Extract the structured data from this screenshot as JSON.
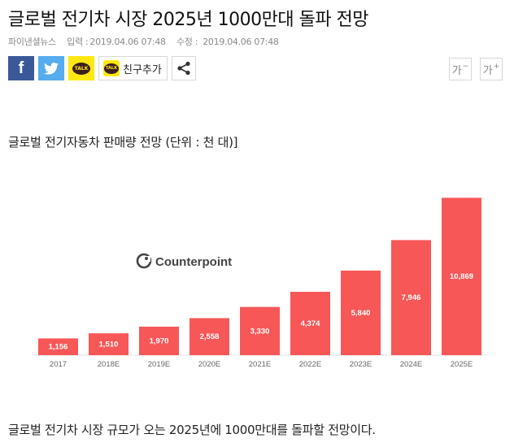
{
  "article": {
    "headline": "글로벌 전기차 시장 2025년 1000만대 돌파 전망",
    "source": "파이낸셜뉴스",
    "input_label": "입력 :",
    "input_time": "2019.04.06 07:48",
    "edit_label": "수정 :",
    "edit_time": "2019.04.06 07:48",
    "figure_caption": "글로벌 전기자동차 판매량 전망 (단위 : 천 대)]",
    "paragraph": "글로벌 전기차 시장 규모가 오는 2025년에 1000만대를 돌파할 전망이다."
  },
  "share": {
    "facebook_glyph": "f",
    "kakao_badge": "TALK",
    "add_friend_label": "친구추가",
    "icons": [
      "facebook-icon",
      "twitter-icon",
      "kakaotalk-icon",
      "share-icon"
    ]
  },
  "font_size": {
    "decrease_label": "가",
    "decrease_mark": "−",
    "increase_label": "가",
    "increase_mark": "+"
  },
  "chart_data": {
    "type": "bar",
    "watermark": "Counterpoint",
    "categories": [
      "2017",
      "2018E",
      "2019E",
      "2020E",
      "2021E",
      "2022E",
      "2023E",
      "2024E",
      "2025E"
    ],
    "values": [
      1156,
      1510,
      1970,
      2558,
      3330,
      4374,
      5840,
      7946,
      10869
    ],
    "value_labels": [
      "1,156",
      "1,510",
      "1,970",
      "2,558",
      "3,330",
      "4,374",
      "5,840",
      "7,946",
      "10,869"
    ],
    "bar_color": "#f75757",
    "ylim": [
      0,
      11000
    ],
    "grid": false
  },
  "colors": {
    "facebook": "#3b5998",
    "twitter": "#55acee",
    "kakao": "#ffe812",
    "bar": "#f75757"
  }
}
